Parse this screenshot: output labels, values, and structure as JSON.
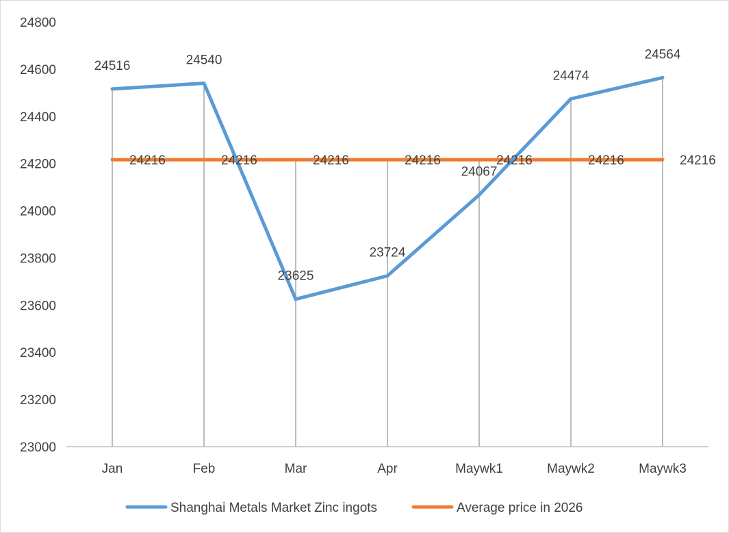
{
  "chart_data": {
    "type": "line",
    "categories": [
      "Jan",
      "Feb",
      "Mar",
      "Apr",
      "Maywk1",
      "Maywk2",
      "Maywk3"
    ],
    "series": [
      {
        "name": "Shanghai Metals Market Zinc ingots",
        "values": [
          24516,
          24540,
          23625,
          23724,
          24067,
          24474,
          24564
        ],
        "color": "#5b9bd5"
      },
      {
        "name": "Average price in 2026",
        "values": [
          24216,
          24216,
          24216,
          24216,
          24216,
          24216,
          24216
        ],
        "color": "#ed7d31"
      }
    ],
    "ylim": [
      23000,
      24800
    ],
    "yticks": [
      23000,
      23200,
      23400,
      23600,
      23800,
      24000,
      24200,
      24400,
      24600,
      24800
    ],
    "data_labels": true,
    "drop_lines": true,
    "grid": false,
    "legend_position": "bottom",
    "title": "",
    "xlabel": "",
    "ylabel": ""
  }
}
